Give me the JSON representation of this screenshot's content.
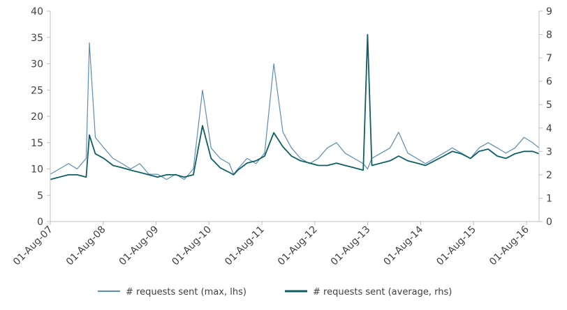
{
  "chart_data": {
    "type": "line",
    "title": "",
    "xlabel": "",
    "ylabel_left": "",
    "ylabel_right": "",
    "x_tick_labels": [
      "01-Aug-07",
      "01-Aug-08",
      "01-Aug-09",
      "01-Aug-10",
      "01-Aug-11",
      "01-Aug-12",
      "01-Aug-13",
      "01-Aug-14",
      "01-Aug-15",
      "01-Aug-16"
    ],
    "x_range": [
      2007.58,
      2016.7
    ],
    "y_left_ticks": [
      "0",
      "5",
      "10",
      "15",
      "20",
      "25",
      "30",
      "35",
      "40"
    ],
    "y_left_range": [
      0,
      40
    ],
    "y_right_ticks": [
      "0",
      "1",
      "2",
      "3",
      "4",
      "5",
      "6",
      "7",
      "8",
      "9"
    ],
    "y_right_range": [
      0,
      9
    ],
    "grid": false,
    "legend_position": "bottom",
    "series": [
      {
        "name": "# requests sent (max, lhs)",
        "axis": "left",
        "color": "#5b8db8",
        "x": [
          2007.58,
          2007.75,
          2007.92,
          2008.08,
          2008.25,
          2008.31,
          2008.42,
          2008.58,
          2008.75,
          2008.92,
          2009.08,
          2009.25,
          2009.42,
          2009.58,
          2009.75,
          2009.92,
          2010.08,
          2010.25,
          2010.42,
          2010.58,
          2010.75,
          2010.92,
          2011.0,
          2011.08,
          2011.25,
          2011.42,
          2011.58,
          2011.75,
          2011.92,
          2012.08,
          2012.25,
          2012.42,
          2012.58,
          2012.75,
          2012.92,
          2013.08,
          2013.25,
          2013.42,
          2013.5,
          2013.58,
          2013.75,
          2013.92,
          2014.08,
          2014.25,
          2014.42,
          2014.58,
          2014.75,
          2014.92,
          2015.08,
          2015.25,
          2015.42,
          2015.58,
          2015.75,
          2015.92,
          2016.08,
          2016.25,
          2016.42,
          2016.58,
          2016.7
        ],
        "y": [
          9,
          10,
          11,
          10,
          12,
          34,
          16,
          14,
          12,
          11,
          10,
          11,
          9,
          9,
          8,
          9,
          8,
          10,
          25,
          14,
          12,
          11,
          9,
          10,
          12,
          11,
          13,
          30,
          17,
          14,
          12,
          11,
          12,
          14,
          15,
          13,
          12,
          11,
          10,
          12,
          13,
          14,
          17,
          13,
          12,
          11,
          12,
          13,
          14,
          13,
          12,
          14,
          15,
          14,
          13,
          14,
          16,
          15,
          14
        ]
      },
      {
        "name": "# requests sent (average, rhs)",
        "axis": "right",
        "color": "#0e5f63",
        "x": [
          2007.58,
          2007.75,
          2007.92,
          2008.08,
          2008.25,
          2008.31,
          2008.42,
          2008.58,
          2008.75,
          2008.92,
          2009.08,
          2009.25,
          2009.42,
          2009.58,
          2009.75,
          2009.92,
          2010.08,
          2010.25,
          2010.42,
          2010.58,
          2010.75,
          2010.92,
          2011.0,
          2011.08,
          2011.25,
          2011.42,
          2011.58,
          2011.75,
          2011.92,
          2012.08,
          2012.25,
          2012.42,
          2012.58,
          2012.75,
          2012.92,
          2013.08,
          2013.25,
          2013.42,
          2013.5,
          2013.58,
          2013.75,
          2013.92,
          2014.08,
          2014.25,
          2014.42,
          2014.58,
          2014.75,
          2014.92,
          2015.08,
          2015.25,
          2015.42,
          2015.58,
          2015.75,
          2015.92,
          2016.08,
          2016.25,
          2016.42,
          2016.58,
          2016.7
        ],
        "y": [
          1.8,
          1.9,
          2.0,
          2.0,
          1.9,
          3.7,
          2.9,
          2.7,
          2.4,
          2.3,
          2.2,
          2.1,
          2.0,
          1.9,
          2.0,
          2.0,
          1.9,
          2.0,
          4.1,
          2.7,
          2.3,
          2.1,
          2.0,
          2.2,
          2.5,
          2.6,
          2.8,
          3.8,
          3.2,
          2.8,
          2.6,
          2.5,
          2.4,
          2.4,
          2.5,
          2.4,
          2.3,
          2.2,
          8.0,
          2.4,
          2.5,
          2.6,
          2.8,
          2.6,
          2.5,
          2.4,
          2.6,
          2.8,
          3.0,
          2.9,
          2.7,
          3.0,
          3.1,
          2.8,
          2.7,
          2.9,
          3.0,
          3.0,
          2.9
        ]
      }
    ]
  }
}
